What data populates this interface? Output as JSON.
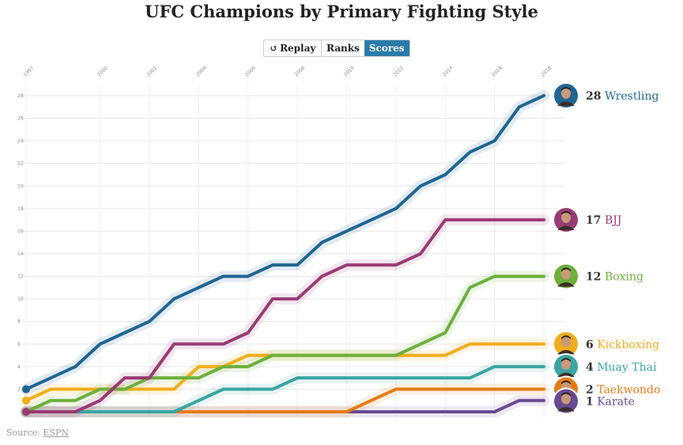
{
  "title": "UFC Champions by Primary Fighting Style",
  "controls": {
    "replay_label": "Replay",
    "replay_icon": "replay-icon",
    "ranks_label": "Ranks",
    "scores_label": "Scores",
    "active_mode": "Scores"
  },
  "source": {
    "prefix": "Source:",
    "link_text": "ESPN"
  },
  "chart_data": {
    "type": "line",
    "title": "UFC Champions by Primary Fighting Style",
    "x_range": [
      1997,
      2018
    ],
    "x_ticks": [
      "1997",
      "2000",
      "2002",
      "2004",
      "2006",
      "2008",
      "2010",
      "2012",
      "2014",
      "2016",
      "2018"
    ],
    "y_range": [
      0,
      28
    ],
    "y_ticks": [
      "2",
      "4",
      "6",
      "8",
      "10",
      "12",
      "14",
      "16",
      "18",
      "20",
      "22",
      "24",
      "26",
      "28"
    ],
    "grid": true,
    "x": [
      1997,
      1998,
      1999,
      2000,
      2001,
      2002,
      2003,
      2004,
      2005,
      2006,
      2007,
      2008,
      2009,
      2010,
      2011,
      2012,
      2013,
      2014,
      2015,
      2016,
      2017,
      2018
    ],
    "series": [
      {
        "name": "Wrestling",
        "final": "28",
        "color": "#1f6592",
        "values": [
          2,
          3,
          4,
          6,
          7,
          8,
          10,
          11,
          12,
          12,
          13,
          13,
          15,
          16,
          17,
          18,
          20,
          21,
          23,
          24,
          27,
          28
        ]
      },
      {
        "name": "BJJ",
        "final": "17",
        "color": "#993b74",
        "values": [
          0,
          0,
          0,
          1,
          3,
          3,
          6,
          6,
          6,
          7,
          10,
          10,
          12,
          13,
          13,
          13,
          14,
          17,
          17,
          17,
          17,
          17
        ]
      },
      {
        "name": "Boxing",
        "final": "12",
        "color": "#6daf3d",
        "values": [
          0,
          1,
          1,
          2,
          2,
          3,
          3,
          3,
          4,
          4,
          5,
          5,
          5,
          5,
          5,
          5,
          6,
          7,
          11,
          12,
          12,
          12
        ]
      },
      {
        "name": "Kickboxing",
        "final": "6",
        "color": "#f0ad1c",
        "values": [
          1,
          2,
          2,
          2,
          2,
          2,
          2,
          4,
          4,
          5,
          5,
          5,
          5,
          5,
          5,
          5,
          5,
          5,
          6,
          6,
          6,
          6
        ]
      },
      {
        "name": "Muay Thai",
        "final": "4",
        "color": "#3aa5a3",
        "values": [
          0,
          0,
          0,
          0,
          0,
          0,
          0,
          1,
          2,
          2,
          2,
          3,
          3,
          3,
          3,
          3,
          3,
          3,
          3,
          4,
          4,
          4
        ]
      },
      {
        "name": "Taekwondo",
        "final": "2",
        "color": "#e47c17",
        "values": [
          0,
          0,
          0,
          0,
          0,
          0,
          0,
          0,
          0,
          0,
          0,
          0,
          0,
          0,
          1,
          2,
          2,
          2,
          2,
          2,
          2,
          2
        ]
      },
      {
        "name": "Karate",
        "final": "1",
        "color": "#6a4a93",
        "values": [
          0,
          0,
          0,
          0,
          0,
          0,
          0,
          0,
          0,
          0,
          0,
          0,
          0,
          0,
          0,
          0,
          0,
          0,
          0,
          0,
          1,
          1
        ]
      }
    ]
  }
}
